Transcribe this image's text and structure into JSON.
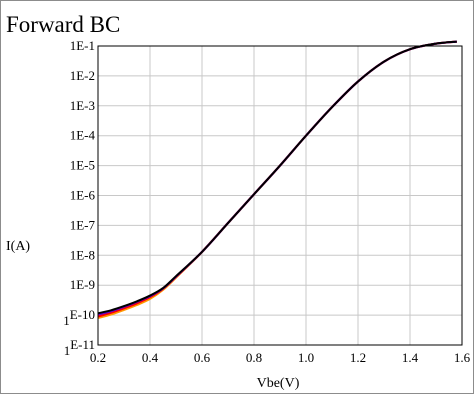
{
  "chart_data": {
    "type": "line",
    "title": "Forward BC",
    "xlabel": "Vbe(V)",
    "ylabel": "I(A)",
    "xlim": [
      0.2,
      1.6
    ],
    "ylim": [
      -11,
      -1
    ],
    "yscale": "log",
    "grid": true,
    "x_ticks": [
      "0.2",
      "0.4",
      "0.6",
      "0.8",
      "1.0",
      "1.2",
      "1.4",
      "1.6"
    ],
    "y_ticks": [
      {
        "lead": "",
        "text": "1E-1"
      },
      {
        "lead": "",
        "text": "1E-2"
      },
      {
        "lead": "",
        "text": "1E-3"
      },
      {
        "lead": "",
        "text": "1E-4"
      },
      {
        "lead": "",
        "text": "1E-5"
      },
      {
        "lead": "",
        "text": "1E-6"
      },
      {
        "lead": "",
        "text": "1E-7"
      },
      {
        "lead": "",
        "text": "1E-8"
      },
      {
        "lead": "",
        "text": "1E-9"
      },
      {
        "lead": "1",
        "text": "E-10"
      },
      {
        "lead": "1",
        "text": "E-11"
      }
    ],
    "series": [
      {
        "color": "#ff9900",
        "x": [
          0.2,
          0.25,
          0.3,
          0.35,
          0.4,
          0.45,
          0.5,
          0.6,
          0.7,
          0.8,
          0.9,
          1.0,
          1.1,
          1.2,
          1.3,
          1.4,
          1.5,
          1.58
        ],
        "y": [
          8e-11,
          1.05e-10,
          1.5e-10,
          2.2e-10,
          3.5e-10,
          7e-10,
          1.8e-09,
          1.3e-08,
          1.2e-07,
          1.1e-06,
          1e-05,
          0.0001,
          0.0009,
          0.0065,
          0.03,
          0.078,
          0.12,
          0.14
        ]
      },
      {
        "color": "#ff0000",
        "x": [
          0.2,
          0.25,
          0.3,
          0.35,
          0.4,
          0.45,
          0.5,
          0.6,
          0.7,
          0.8,
          0.9,
          1.0,
          1.1,
          1.2,
          1.3,
          1.4,
          1.5,
          1.58
        ],
        "y": [
          9e-11,
          1.2e-10,
          1.7e-10,
          2.5e-10,
          4e-10,
          7.6e-10,
          1.9e-09,
          1.3e-08,
          1.2e-07,
          1.1e-06,
          1e-05,
          0.0001,
          0.0009,
          0.0065,
          0.03,
          0.078,
          0.12,
          0.14
        ]
      },
      {
        "color": "#6600cc",
        "x": [
          0.2,
          0.25,
          0.3,
          0.35,
          0.4,
          0.45,
          0.5,
          0.6,
          0.7,
          0.8,
          0.9,
          1.0,
          1.1,
          1.2,
          1.3,
          1.4,
          1.5,
          1.58
        ],
        "y": [
          1.05e-10,
          1.35e-10,
          1.9e-10,
          2.8e-10,
          4.3e-10,
          7.8e-10,
          1.95e-09,
          1.3e-08,
          1.2e-07,
          1.1e-06,
          1e-05,
          0.0001,
          0.0009,
          0.0065,
          0.03,
          0.078,
          0.12,
          0.14
        ]
      },
      {
        "color": "#000000",
        "x": [
          0.2,
          0.25,
          0.3,
          0.35,
          0.4,
          0.45,
          0.5,
          0.6,
          0.7,
          0.8,
          0.9,
          1.0,
          1.1,
          1.2,
          1.3,
          1.4,
          1.5,
          1.58
        ],
        "y": [
          1.15e-10,
          1.45e-10,
          2e-10,
          2.9e-10,
          4.5e-10,
          8e-10,
          2e-09,
          1.3e-08,
          1.2e-07,
          1.1e-06,
          1e-05,
          0.0001,
          0.0009,
          0.0065,
          0.03,
          0.078,
          0.12,
          0.14
        ]
      }
    ]
  }
}
